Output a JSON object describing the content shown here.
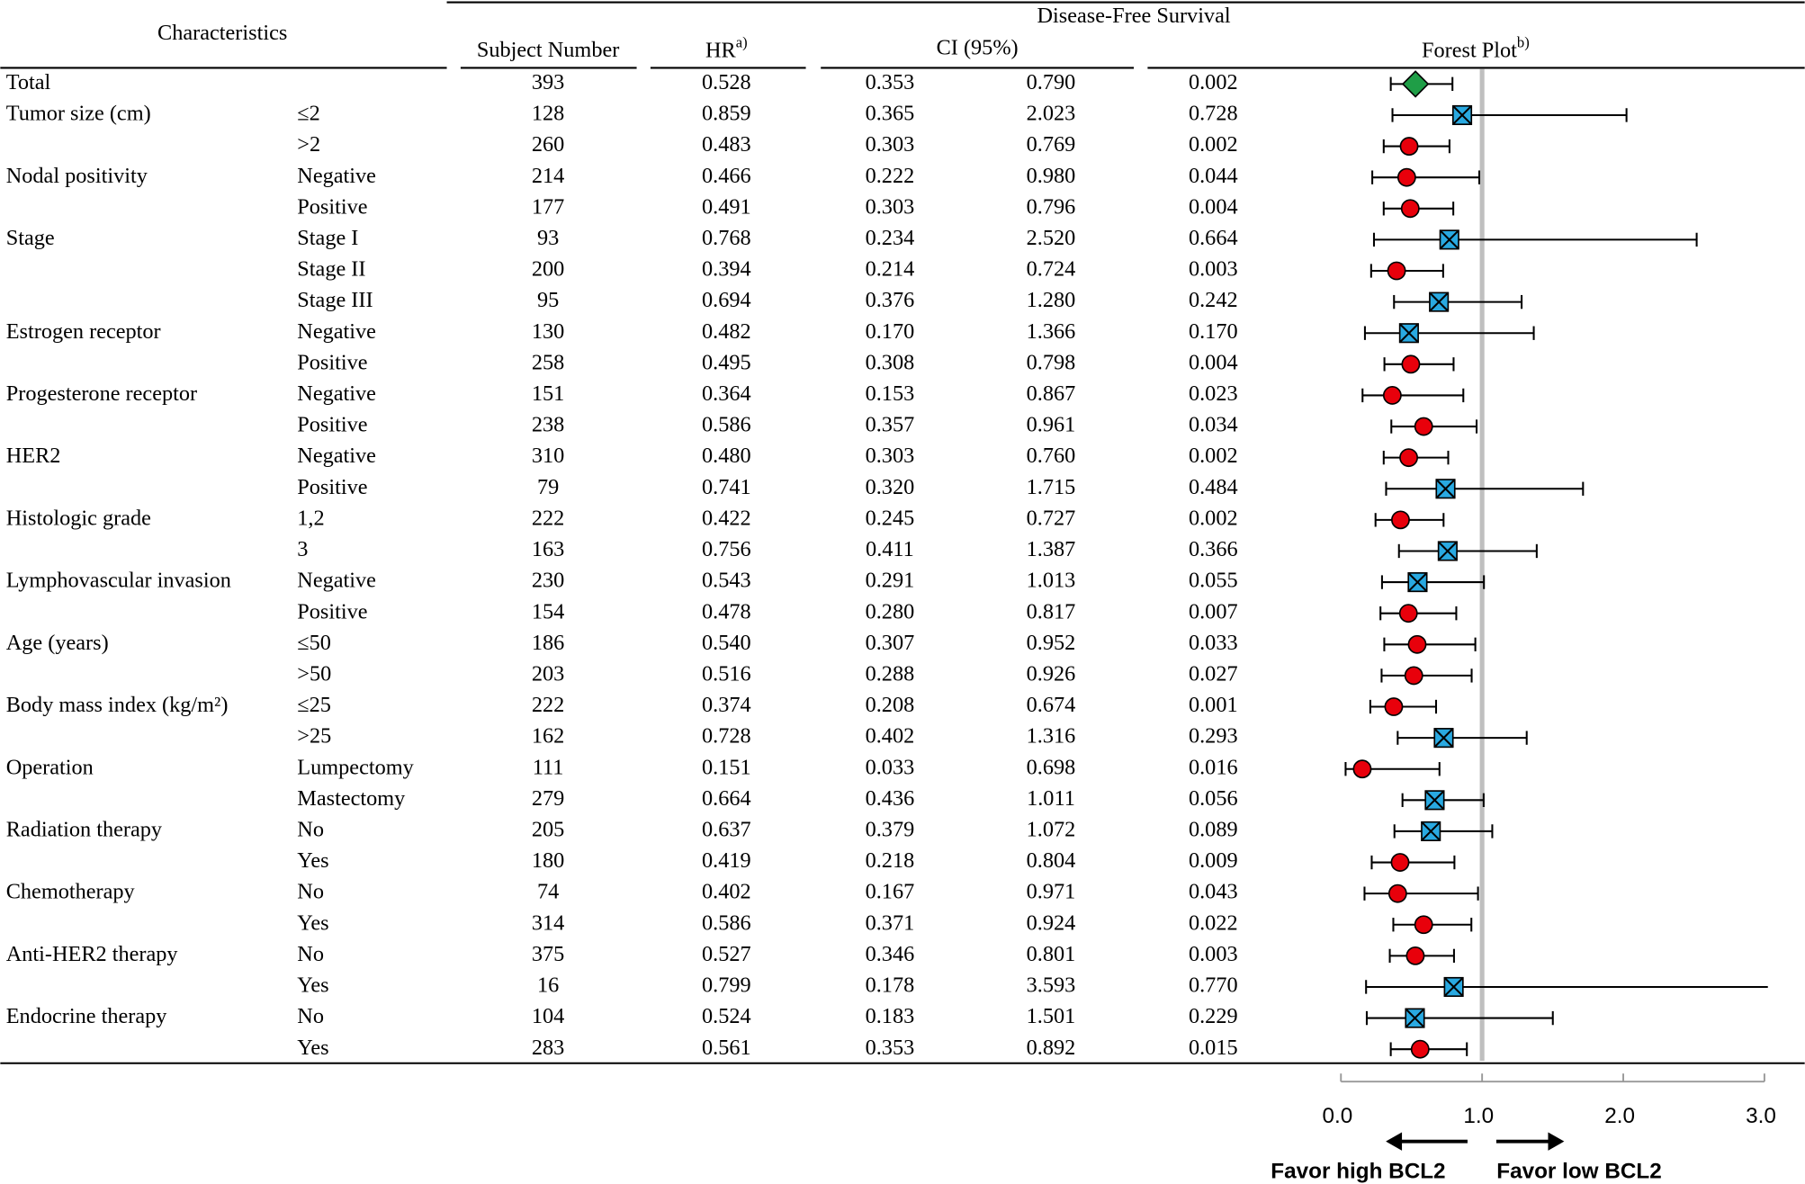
{
  "header": {
    "characteristics": "Characteristics",
    "group_title": "Disease-Free Survival",
    "subject_number": "Subject Number",
    "hr": "HR",
    "hr_note": "a)",
    "ci": "CI (95%)",
    "forest": "Forest Plot",
    "forest_note": "b)"
  },
  "groups": [
    {
      "characteristic": "Total",
      "rows": [
        {
          "n": "393",
          "hr": "0.528",
          "ci_low": "0.353",
          "ci_high": "0.790",
          "p": "0.002",
          "marker": "diamond"
        }
      ]
    },
    {
      "characteristic": "Tumor size (cm)",
      "rows": [
        {
          "subgroup": "≤2",
          "n": "128",
          "hr": "0.859",
          "ci_low": "0.365",
          "ci_high": "2.023",
          "p": "0.728",
          "marker": "cross"
        },
        {
          "subgroup": ">2",
          "n": "260",
          "hr": "0.483",
          "ci_low": "0.303",
          "ci_high": "0.769",
          "p": "0.002",
          "marker": "circle"
        }
      ]
    },
    {
      "characteristic": "Nodal positivity",
      "rows": [
        {
          "subgroup": "Negative",
          "n": "214",
          "hr": "0.466",
          "ci_low": "0.222",
          "ci_high": "0.980",
          "p": "0.044",
          "marker": "circle"
        },
        {
          "subgroup": "Positive",
          "n": "177",
          "hr": "0.491",
          "ci_low": "0.303",
          "ci_high": "0.796",
          "p": "0.004",
          "marker": "circle"
        }
      ]
    },
    {
      "characteristic": "Stage",
      "rows": [
        {
          "subgroup": "Stage I",
          "n": "93",
          "hr": "0.768",
          "ci_low": "0.234",
          "ci_high": "2.520",
          "p": "0.664",
          "marker": "cross"
        },
        {
          "subgroup": "Stage II",
          "n": "200",
          "hr": "0.394",
          "ci_low": "0.214",
          "ci_high": "0.724",
          "p": "0.003",
          "marker": "circle"
        },
        {
          "subgroup": "Stage III",
          "n": "95",
          "hr": "0.694",
          "ci_low": "0.376",
          "ci_high": "1.280",
          "p": "0.242",
          "marker": "cross"
        }
      ]
    },
    {
      "characteristic": "Estrogen receptor",
      "rows": [
        {
          "subgroup": "Negative",
          "n": "130",
          "hr": "0.482",
          "ci_low": "0.170",
          "ci_high": "1.366",
          "p": "0.170",
          "marker": "cross"
        },
        {
          "subgroup": "Positive",
          "n": "258",
          "hr": "0.495",
          "ci_low": "0.308",
          "ci_high": "0.798",
          "p": "0.004",
          "marker": "circle"
        }
      ]
    },
    {
      "characteristic": "Progesterone receptor",
      "rows": [
        {
          "subgroup": "Negative",
          "n": "151",
          "hr": "0.364",
          "ci_low": "0.153",
          "ci_high": "0.867",
          "p": "0.023",
          "marker": "circle"
        },
        {
          "subgroup": "Positive",
          "n": "238",
          "hr": "0.586",
          "ci_low": "0.357",
          "ci_high": "0.961",
          "p": "0.034",
          "marker": "circle"
        }
      ]
    },
    {
      "characteristic": "HER2",
      "rows": [
        {
          "subgroup": "Negative",
          "n": "310",
          "hr": "0.480",
          "ci_low": "0.303",
          "ci_high": "0.760",
          "p": "0.002",
          "marker": "circle"
        },
        {
          "subgroup": "Positive",
          "n": "79",
          "hr": "0.741",
          "ci_low": "0.320",
          "ci_high": "1.715",
          "p": "0.484",
          "marker": "cross"
        }
      ]
    },
    {
      "characteristic": "Histologic grade",
      "rows": [
        {
          "subgroup": "1,2",
          "n": "222",
          "hr": "0.422",
          "ci_low": "0.245",
          "ci_high": "0.727",
          "p": "0.002",
          "marker": "circle"
        },
        {
          "subgroup": "3",
          "n": "163",
          "hr": "0.756",
          "ci_low": "0.411",
          "ci_high": "1.387",
          "p": "0.366",
          "marker": "cross"
        }
      ]
    },
    {
      "characteristic": "Lymphovascular invasion",
      "rows": [
        {
          "subgroup": "Negative",
          "n": "230",
          "hr": "0.543",
          "ci_low": "0.291",
          "ci_high": "1.013",
          "p": "0.055",
          "marker": "cross"
        },
        {
          "subgroup": "Positive",
          "n": "154",
          "hr": "0.478",
          "ci_low": "0.280",
          "ci_high": "0.817",
          "p": "0.007",
          "marker": "circle"
        }
      ]
    },
    {
      "characteristic": "Age (years)",
      "rows": [
        {
          "subgroup": "≤50",
          "n": "186",
          "hr": "0.540",
          "ci_low": "0.307",
          "ci_high": "0.952",
          "p": "0.033",
          "marker": "circle"
        },
        {
          "subgroup": ">50",
          "n": "203",
          "hr": "0.516",
          "ci_low": "0.288",
          "ci_high": "0.926",
          "p": "0.027",
          "marker": "circle"
        }
      ]
    },
    {
      "characteristic": "Body mass index (kg/m²)",
      "rows": [
        {
          "subgroup": "≤25",
          "n": "222",
          "hr": "0.374",
          "ci_low": "0.208",
          "ci_high": "0.674",
          "p": "0.001",
          "marker": "circle"
        },
        {
          "subgroup": ">25",
          "n": "162",
          "hr": "0.728",
          "ci_low": "0.402",
          "ci_high": "1.316",
          "p": "0.293",
          "marker": "cross"
        }
      ]
    },
    {
      "characteristic": "Operation",
      "rows": [
        {
          "subgroup": "Lumpectomy",
          "n": "111",
          "hr": "0.151",
          "ci_low": "0.033",
          "ci_high": "0.698",
          "p": "0.016",
          "marker": "circle"
        },
        {
          "subgroup": "Mastectomy",
          "n": "279",
          "hr": "0.664",
          "ci_low": "0.436",
          "ci_high": "1.011",
          "p": "0.056",
          "marker": "cross"
        }
      ]
    },
    {
      "characteristic": "Radiation therapy",
      "rows": [
        {
          "subgroup": "No",
          "n": "205",
          "hr": "0.637",
          "ci_low": "0.379",
          "ci_high": "1.072",
          "p": "0.089",
          "marker": "cross"
        },
        {
          "subgroup": "Yes",
          "n": "180",
          "hr": "0.419",
          "ci_low": "0.218",
          "ci_high": "0.804",
          "p": "0.009",
          "marker": "circle"
        }
      ]
    },
    {
      "characteristic": "Chemotherapy",
      "rows": [
        {
          "subgroup": "No",
          "n": "74",
          "hr": "0.402",
          "ci_low": "0.167",
          "ci_high": "0.971",
          "p": "0.043",
          "marker": "circle"
        },
        {
          "subgroup": "Yes",
          "n": "314",
          "hr": "0.586",
          "ci_low": "0.371",
          "ci_high": "0.924",
          "p": "0.022",
          "marker": "circle"
        }
      ]
    },
    {
      "characteristic": "Anti-HER2 therapy",
      "rows": [
        {
          "subgroup": "No",
          "n": "375",
          "hr": "0.527",
          "ci_low": "0.346",
          "ci_high": "0.801",
          "p": "0.003",
          "marker": "circle"
        },
        {
          "subgroup": "Yes",
          "n": "16",
          "hr": "0.799",
          "ci_low": "0.178",
          "ci_high": "3.593",
          "p": "0.770",
          "marker": "cross"
        }
      ]
    },
    {
      "characteristic": "Endocrine therapy",
      "rows": [
        {
          "subgroup": "No",
          "n": "104",
          "hr": "0.524",
          "ci_low": "0.183",
          "ci_high": "1.501",
          "p": "0.229",
          "marker": "cross"
        },
        {
          "subgroup": "Yes",
          "n": "283",
          "hr": "0.561",
          "ci_low": "0.353",
          "ci_high": "0.892",
          "p": "0.015",
          "marker": "circle"
        }
      ]
    }
  ],
  "forest_plot": {
    "xlim": [
      0,
      3
    ],
    "xticks": [
      {
        "value": 0,
        "label": "0.0"
      },
      {
        "value": 1,
        "label": "1.0"
      },
      {
        "value": 2,
        "label": "2.0"
      },
      {
        "value": 3,
        "label": "3.0"
      }
    ],
    "reference": 1,
    "favor_left": "Favor  high BCL2",
    "favor_right": "Favor  low BCL2",
    "colors": {
      "circle": "#e8000b",
      "cross": "#29a9e1",
      "diamond": "#1f9e47"
    }
  }
}
